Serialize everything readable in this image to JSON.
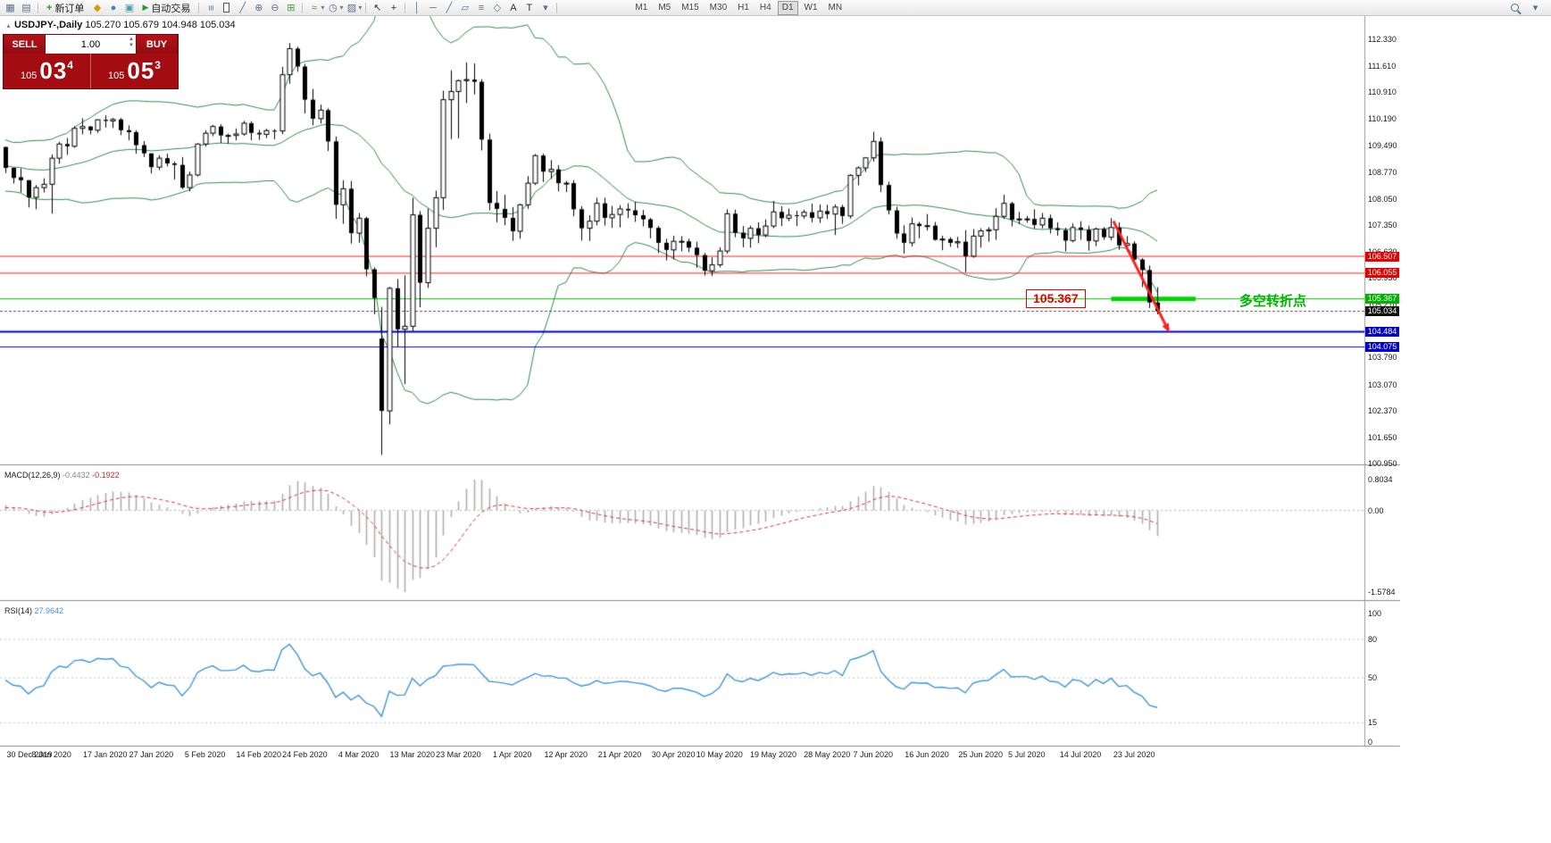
{
  "toolbar": {
    "new_order_label": "新订单",
    "auto_trading_label": "自动交易",
    "timeframes": [
      "M1",
      "M5",
      "M15",
      "M30",
      "H1",
      "H4",
      "D1",
      "W1",
      "MN"
    ],
    "active_timeframe": "D1",
    "icons": [
      "new-window-icon",
      "profiles-icon",
      "plus-icon",
      "news-icon",
      "market-watch-icon",
      "terminal-icon",
      "play-icon",
      "bar-chart-icon",
      "candlestick-icon",
      "line-chart-icon",
      "zoom-in-icon",
      "zoom-out-icon",
      "tile-windows-icon",
      "indicators-icon",
      "periods-icon",
      "templates-icon",
      "cursor-icon",
      "crosshair-icon",
      "vertical-line-icon",
      "horizontal-line-icon",
      "trendline-icon",
      "channel-icon",
      "fibonacci-icon",
      "shapes-icon",
      "text-icon",
      "label-icon",
      "arrows-icon",
      "search-icon",
      "options-icon"
    ]
  },
  "chart": {
    "symbol_period": "USDJPY-,Daily",
    "ohlc": "105.270 105.679 104.948 105.034"
  },
  "one_click": {
    "sell_label": "SELL",
    "buy_label": "BUY",
    "volume": "1.00",
    "bid": {
      "prefix": "105",
      "big": "03",
      "sup": "4"
    },
    "ask": {
      "prefix": "105",
      "big": "05",
      "sup": "3"
    }
  },
  "indicators": {
    "macd": {
      "name": "MACD(12,26,9)",
      "main": "-0.4432",
      "signal": "-0.1922"
    },
    "rsi": {
      "name": "RSI(14)",
      "value": "27.9642"
    }
  },
  "annotations": {
    "price_box": {
      "text": "105.367"
    },
    "note": {
      "text": "多空转折点",
      "color": "#00b400"
    }
  },
  "colors": {
    "bollinger": "#2e8b57",
    "up_candle": "#ffffff",
    "down_candle": "#000000",
    "outline": "#000000",
    "macd_hist": "#b0b0b0",
    "macd_signal": "#e03030",
    "rsi_line": "#3f97d9",
    "red_level": "#ff2222",
    "green_level": "#00c000",
    "green_segment": "#00d500",
    "blue_level": "#0000cc",
    "bid_line": "#555555",
    "arrow": "#ff1f1f"
  },
  "chart_data": {
    "type": "candlestick",
    "symbol": "USDJPY-",
    "timeframe": "Daily",
    "last_ohlc": {
      "open": 105.27,
      "high": 105.679,
      "low": 104.948,
      "close": 105.034
    },
    "bid": "105.034",
    "ask": "105.053",
    "axis": {
      "price_labels": [
        "112.330",
        "111.610",
        "110.910",
        "110.190",
        "109.490",
        "108.770",
        "108.050",
        "107.350",
        "106.630",
        "105.930",
        "105.210",
        "104.490",
        "103.790",
        "103.070",
        "102.370",
        "101.650",
        "100.950"
      ],
      "macd_labels": [
        "0.8034",
        "0.00",
        "-1.5784"
      ],
      "rsi_labels": [
        "100",
        "80",
        "50",
        "15",
        "0"
      ],
      "dates": [
        [
          "30 Dec 2019",
          0
        ],
        [
          "8 Jan 2020",
          6
        ],
        [
          "17 Jan 2020",
          13
        ],
        [
          "27 Jan 2020",
          19
        ],
        [
          "5 Feb 2020",
          26
        ],
        [
          "14 Feb 2020",
          33
        ],
        [
          "24 Feb 2020",
          39
        ],
        [
          "4 Mar 2020",
          46
        ],
        [
          "13 Mar 2020",
          53
        ],
        [
          "23 Mar 2020",
          59
        ],
        [
          "1 Apr 2020",
          66
        ],
        [
          "12 Apr 2020",
          73
        ],
        [
          "21 Apr 2020",
          80
        ],
        [
          "30 Apr 2020",
          87
        ],
        [
          "10 May 2020",
          93
        ],
        [
          "19 May 2020",
          100
        ],
        [
          "28 May 2020",
          107
        ],
        [
          "7 Jun 2020",
          113
        ],
        [
          "16 Jun 2020",
          120
        ],
        [
          "25 Jun 2020",
          127
        ],
        [
          "5 Jul 2020",
          133
        ],
        [
          "14 Jul 2020",
          140
        ],
        [
          "23 Jul 2020",
          147
        ]
      ]
    },
    "price_tags": [
      {
        "text": "106.507",
        "value": 106.507,
        "color": "#e60000"
      },
      {
        "text": "106.055",
        "value": 106.055,
        "color": "#e60000"
      },
      {
        "text": "105.367",
        "value": 105.367,
        "color": "#00b300"
      },
      {
        "text": "105.034",
        "value": 105.034,
        "color": "#111111"
      },
      {
        "text": "104.484",
        "value": 104.484,
        "color": "#0000cc"
      },
      {
        "text": "104.075",
        "value": 104.075,
        "color": "#0000cc"
      }
    ],
    "hlines": [
      {
        "value": 106.507,
        "color": "#ff2222",
        "width": 1
      },
      {
        "value": 106.055,
        "color": "#ff2222",
        "width": 1
      },
      {
        "value": 105.367,
        "color": "#00c000",
        "width": 1
      },
      {
        "value": 104.484,
        "color": "#0000cc",
        "width": 2
      },
      {
        "value": 104.075,
        "color": "#0000cc",
        "width": 1
      }
    ],
    "bid_line": {
      "value": 105.034
    },
    "pivot_segment": {
      "value": 105.367,
      "from_index": 144,
      "to_index": 155,
      "width": 5
    },
    "arrow": {
      "from": {
        "index": 144.3,
        "price": 107.45
      },
      "to": {
        "index": 151.6,
        "price": 104.46
      }
    },
    "indicator_settings": {
      "bollinger": {
        "period": 20,
        "deviation": 2
      },
      "macd": [
        12,
        26,
        9
      ],
      "rsi": 14
    },
    "prehistory_closes": [
      108.88,
      109.07,
      108.66,
      108.52,
      108.86,
      109.46,
      109.61,
      109.45,
      108.84,
      108.98,
      108.62,
      108.56,
      108.76,
      108.72,
      108.66,
      108.86,
      109.06,
      108.66,
      108.46,
      108.56,
      108.72,
      109.33,
      109.38,
      109.44,
      109.5,
      109.44
    ],
    "candles": [
      [
        109.44,
        109.45,
        108.74,
        108.88
      ],
      [
        108.88,
        108.89,
        108.46,
        108.61
      ],
      [
        108.63,
        108.87,
        108.22,
        108.55
      ],
      [
        108.55,
        108.55,
        107.82,
        108.09
      ],
      [
        108.09,
        108.42,
        107.77,
        108.35
      ],
      [
        108.35,
        108.6,
        108.22,
        108.44
      ],
      [
        108.44,
        109.24,
        107.65,
        109.14
      ],
      [
        109.14,
        109.58,
        108.99,
        109.52
      ],
      [
        109.52,
        109.68,
        109.23,
        109.46
      ],
      [
        109.46,
        110.0,
        109.42,
        109.94
      ],
      [
        109.94,
        110.21,
        109.78,
        109.99
      ],
      [
        109.99,
        110.0,
        109.78,
        109.89
      ],
      [
        109.89,
        110.18,
        109.82,
        110.17
      ],
      [
        110.17,
        110.29,
        109.96,
        110.14
      ],
      [
        110.14,
        110.22,
        109.95,
        110.18
      ],
      [
        110.18,
        110.22,
        109.76,
        109.89
      ],
      [
        109.89,
        110.02,
        109.62,
        109.84
      ],
      [
        109.84,
        109.89,
        109.26,
        109.49
      ],
      [
        109.49,
        109.6,
        109.17,
        109.27
      ],
      [
        109.27,
        109.27,
        108.73,
        108.9
      ],
      [
        108.9,
        109.22,
        108.82,
        109.14
      ],
      [
        109.14,
        109.26,
        108.92,
        109.0
      ],
      [
        109.0,
        109.05,
        108.57,
        108.96
      ],
      [
        108.96,
        109.17,
        108.31,
        108.35
      ],
      [
        108.35,
        108.78,
        108.25,
        108.69
      ],
      [
        108.69,
        109.54,
        108.65,
        109.52
      ],
      [
        109.52,
        109.89,
        109.45,
        109.81
      ],
      [
        109.81,
        110.03,
        109.73,
        109.99
      ],
      [
        109.99,
        110.05,
        109.55,
        109.75
      ],
      [
        109.75,
        109.8,
        109.53,
        109.75
      ],
      [
        109.75,
        109.94,
        109.62,
        109.79
      ],
      [
        109.79,
        110.14,
        109.74,
        110.08
      ],
      [
        110.08,
        110.13,
        109.62,
        109.82
      ],
      [
        109.82,
        109.9,
        109.63,
        109.78
      ],
      [
        109.78,
        109.93,
        109.68,
        109.88
      ],
      [
        109.88,
        109.92,
        109.65,
        109.87
      ],
      [
        109.87,
        111.59,
        109.78,
        111.38
      ],
      [
        111.38,
        112.23,
        111.14,
        112.08
      ],
      [
        112.08,
        112.13,
        111.46,
        111.6
      ],
      [
        111.6,
        111.67,
        110.34,
        110.71
      ],
      [
        110.71,
        111.0,
        110.02,
        110.2
      ],
      [
        110.2,
        110.58,
        110.07,
        110.43
      ],
      [
        110.43,
        110.48,
        109.33,
        109.59
      ],
      [
        109.59,
        109.72,
        107.51,
        107.89
      ],
      [
        107.89,
        108.55,
        107.38,
        108.32
      ],
      [
        108.32,
        108.53,
        106.85,
        107.13
      ],
      [
        107.13,
        107.67,
        106.87,
        107.53
      ],
      [
        107.53,
        107.57,
        105.97,
        106.16
      ],
      [
        106.16,
        106.21,
        104.95,
        105.39
      ],
      [
        104.3,
        105.15,
        101.18,
        102.36
      ],
      [
        102.36,
        105.69,
        102.0,
        105.65
      ],
      [
        105.65,
        105.9,
        104.07,
        104.55
      ],
      [
        104.55,
        106.0,
        103.08,
        104.63
      ],
      [
        104.63,
        108.08,
        104.5,
        107.62
      ],
      [
        107.62,
        107.72,
        105.14,
        105.8
      ],
      [
        105.8,
        107.79,
        105.66,
        107.26
      ],
      [
        107.26,
        108.27,
        106.75,
        108.08
      ],
      [
        108.08,
        110.95,
        107.75,
        110.71
      ],
      [
        110.71,
        111.5,
        109.65,
        110.93
      ],
      [
        110.93,
        111.25,
        109.67,
        111.22
      ],
      [
        111.22,
        111.71,
        110.62,
        111.25
      ],
      [
        111.25,
        111.68,
        110.85,
        111.19
      ],
      [
        111.19,
        111.26,
        109.35,
        109.64
      ],
      [
        109.64,
        109.8,
        107.74,
        107.94
      ],
      [
        107.94,
        108.26,
        107.42,
        107.78
      ],
      [
        107.78,
        108.16,
        107.34,
        107.54
      ],
      [
        107.54,
        107.83,
        106.92,
        107.18
      ],
      [
        107.18,
        107.92,
        106.98,
        107.89
      ],
      [
        107.89,
        108.66,
        107.78,
        108.47
      ],
      [
        108.47,
        109.25,
        108.42,
        109.21
      ],
      [
        109.21,
        109.26,
        108.5,
        108.78
      ],
      [
        108.78,
        109.09,
        108.58,
        108.84
      ],
      [
        108.84,
        108.95,
        108.25,
        108.47
      ],
      [
        108.47,
        108.53,
        108.23,
        108.47
      ],
      [
        108.47,
        108.55,
        107.58,
        107.77
      ],
      [
        107.77,
        107.85,
        106.93,
        107.26
      ],
      [
        107.26,
        107.61,
        106.92,
        107.45
      ],
      [
        107.45,
        108.08,
        107.34,
        107.93
      ],
      [
        107.93,
        108.08,
        107.33,
        107.54
      ],
      [
        107.54,
        107.86,
        107.27,
        107.63
      ],
      [
        107.63,
        107.88,
        107.28,
        107.78
      ],
      [
        107.78,
        107.93,
        107.53,
        107.74
      ],
      [
        107.74,
        107.97,
        107.43,
        107.61
      ],
      [
        107.61,
        107.75,
        107.31,
        107.5
      ],
      [
        107.5,
        107.54,
        106.99,
        107.27
      ],
      [
        107.27,
        107.32,
        106.6,
        106.87
      ],
      [
        106.87,
        106.98,
        106.4,
        106.68
      ],
      [
        106.68,
        107.06,
        106.42,
        106.91
      ],
      [
        106.91,
        107.05,
        106.64,
        106.91
      ],
      [
        106.91,
        106.98,
        106.62,
        106.74
      ],
      [
        106.74,
        106.9,
        106.2,
        106.54
      ],
      [
        106.54,
        106.6,
        105.99,
        106.12
      ],
      [
        106.12,
        106.48,
        105.98,
        106.28
      ],
      [
        106.28,
        106.75,
        106.21,
        106.65
      ],
      [
        106.65,
        107.77,
        106.58,
        107.65
      ],
      [
        107.65,
        107.76,
        107.02,
        107.14
      ],
      [
        107.14,
        107.32,
        106.75,
        106.99
      ],
      [
        106.99,
        107.33,
        106.74,
        107.26
      ],
      [
        107.26,
        107.42,
        106.86,
        107.08
      ],
      [
        107.08,
        107.5,
        107.02,
        107.32
      ],
      [
        107.32,
        107.99,
        107.26,
        107.7
      ],
      [
        107.7,
        107.85,
        107.32,
        107.53
      ],
      [
        107.53,
        107.79,
        107.45,
        107.61
      ],
      [
        107.61,
        107.73,
        107.32,
        107.59
      ],
      [
        107.59,
        107.76,
        107.52,
        107.69
      ],
      [
        107.69,
        107.92,
        107.42,
        107.54
      ],
      [
        107.54,
        107.9,
        107.4,
        107.72
      ],
      [
        107.72,
        107.89,
        107.51,
        107.64
      ],
      [
        107.64,
        107.9,
        107.08,
        107.83
      ],
      [
        107.83,
        107.89,
        107.38,
        107.59
      ],
      [
        107.59,
        108.71,
        107.52,
        108.68
      ],
      [
        108.68,
        108.92,
        108.41,
        108.88
      ],
      [
        108.88,
        109.16,
        108.77,
        109.15
      ],
      [
        109.15,
        109.85,
        109.05,
        109.59
      ],
      [
        109.59,
        109.7,
        108.23,
        108.42
      ],
      [
        108.42,
        108.51,
        107.63,
        107.74
      ],
      [
        107.74,
        107.84,
        106.98,
        107.12
      ],
      [
        107.12,
        107.34,
        106.58,
        106.87
      ],
      [
        106.87,
        107.55,
        106.77,
        107.38
      ],
      [
        107.38,
        107.43,
        106.99,
        107.32
      ],
      [
        107.32,
        107.64,
        107.2,
        107.33
      ],
      [
        107.33,
        107.43,
        106.93,
        106.95
      ],
      [
        106.95,
        107.06,
        106.67,
        106.97
      ],
      [
        106.97,
        107.02,
        106.76,
        106.87
      ],
      [
        106.87,
        107.03,
        106.73,
        106.9
      ],
      [
        106.9,
        107.21,
        106.08,
        106.51
      ],
      [
        106.51,
        107.24,
        106.47,
        107.05
      ],
      [
        107.05,
        107.26,
        106.74,
        107.19
      ],
      [
        107.19,
        107.29,
        106.9,
        107.22
      ],
      [
        107.22,
        107.8,
        106.95,
        107.58
      ],
      [
        107.58,
        108.16,
        107.51,
        107.93
      ],
      [
        107.93,
        107.97,
        107.31,
        107.49
      ],
      [
        107.49,
        107.7,
        107.37,
        107.51
      ],
      [
        107.51,
        107.59,
        107.41,
        107.51
      ],
      [
        107.51,
        107.77,
        107.25,
        107.35
      ],
      [
        107.35,
        107.67,
        107.26,
        107.53
      ],
      [
        107.53,
        107.63,
        107.12,
        107.26
      ],
      [
        107.26,
        107.42,
        107.06,
        107.21
      ],
      [
        107.21,
        107.27,
        106.64,
        106.93
      ],
      [
        106.93,
        107.39,
        106.88,
        107.28
      ],
      [
        107.28,
        107.45,
        106.95,
        107.22
      ],
      [
        107.22,
        107.33,
        106.66,
        106.92
      ],
      [
        106.92,
        107.28,
        106.78,
        107.24
      ],
      [
        107.24,
        107.29,
        106.95,
        107.02
      ],
      [
        107.02,
        107.53,
        106.94,
        107.28
      ],
      [
        107.28,
        107.42,
        106.68,
        106.8
      ],
      [
        106.8,
        107.05,
        106.63,
        106.85
      ],
      [
        106.85,
        106.91,
        106.35,
        106.42
      ],
      [
        106.42,
        106.46,
        105.68,
        106.14
      ],
      [
        106.14,
        106.26,
        105.12,
        105.27
      ],
      [
        105.27,
        105.679,
        104.948,
        105.034
      ]
    ]
  }
}
